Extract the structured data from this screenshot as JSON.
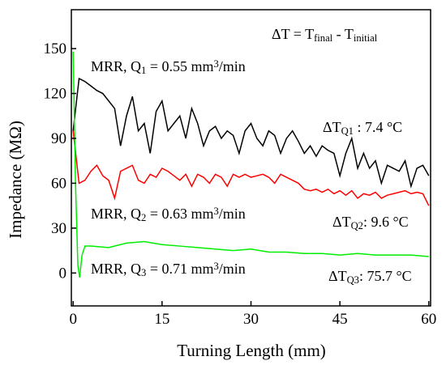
{
  "chart_data": {
    "type": "line",
    "y_label": "Impedance (MΩ)",
    "x_label": "Turning Length (mm)",
    "xlim": [
      -0.3,
      60.3
    ],
    "ylim": [
      -22,
      176
    ],
    "xticks": [
      0,
      15,
      30,
      45,
      60
    ],
    "yticks": [
      0,
      30,
      60,
      90,
      120,
      150
    ],
    "series": [
      {
        "color": "#000000",
        "x": [
          0,
          1,
          2,
          3,
          4,
          5,
          6,
          7,
          8,
          9,
          10,
          11,
          12,
          13,
          14,
          15,
          16,
          17,
          18,
          19,
          20,
          21,
          22,
          23,
          24,
          25,
          26,
          27,
          28,
          29,
          30,
          31,
          32,
          33,
          34,
          35,
          36,
          37,
          38,
          39,
          40,
          41,
          42,
          43,
          44,
          45,
          46,
          47,
          48,
          49,
          50,
          51,
          52,
          53,
          54,
          55,
          56,
          57,
          58,
          59,
          60
        ],
        "values": [
          95,
          130,
          128,
          125,
          122,
          120,
          115,
          110,
          85,
          105,
          118,
          95,
          100,
          80,
          108,
          115,
          95,
          100,
          105,
          90,
          110,
          100,
          85,
          95,
          98,
          90,
          95,
          92,
          80,
          95,
          100,
          90,
          85,
          95,
          92,
          80,
          90,
          95,
          88,
          80,
          85,
          78,
          85,
          82,
          80,
          65,
          80,
          90,
          70,
          80,
          70,
          75,
          60,
          72,
          70,
          68,
          75,
          58,
          70,
          72,
          65
        ]
      },
      {
        "color": "#ff0000",
        "x": [
          0,
          1,
          2,
          3,
          4,
          5,
          6,
          7,
          8,
          9,
          10,
          11,
          12,
          13,
          14,
          15,
          16,
          17,
          18,
          19,
          20,
          21,
          22,
          23,
          24,
          25,
          26,
          27,
          28,
          29,
          30,
          31,
          32,
          33,
          34,
          35,
          36,
          37,
          38,
          39,
          40,
          41,
          42,
          43,
          44,
          45,
          46,
          47,
          48,
          49,
          50,
          51,
          52,
          53,
          54,
          55,
          56,
          57,
          58,
          59,
          60
        ],
        "values": [
          95,
          60,
          62,
          68,
          72,
          65,
          62,
          50,
          68,
          70,
          72,
          62,
          60,
          66,
          64,
          70,
          68,
          65,
          62,
          66,
          58,
          66,
          64,
          60,
          66,
          64,
          58,
          66,
          64,
          66,
          64,
          65,
          66,
          64,
          60,
          66,
          64,
          62,
          60,
          56,
          55,
          56,
          54,
          56,
          53,
          55,
          52,
          55,
          50,
          53,
          52,
          54,
          50,
          52,
          53,
          54,
          55,
          53,
          54,
          53,
          45
        ]
      },
      {
        "color": "#00ee00",
        "x": [
          0,
          0.4,
          0.8,
          1.1,
          1.5,
          2,
          3,
          6,
          9,
          12,
          15,
          18,
          21,
          24,
          27,
          30,
          33,
          36,
          39,
          42,
          45,
          48,
          51,
          54,
          57,
          60
        ],
        "values": [
          148,
          60,
          5,
          -3,
          12,
          18,
          18,
          17,
          20,
          21,
          19,
          18,
          17,
          16,
          15,
          16,
          14,
          14,
          13,
          13,
          12,
          13,
          12,
          12,
          12,
          11
        ]
      }
    ],
    "annotations": [
      {
        "parts": [
          {
            "text": "ΔT = T"
          },
          {
            "text": "final",
            "sub": true
          },
          {
            "text": " - T"
          },
          {
            "text": "initial",
            "sub": true
          }
        ]
      },
      {
        "parts": [
          {
            "text": "MRR, Q"
          },
          {
            "text": "1",
            "sub": true
          },
          {
            "text": " = 0.55 mm"
          },
          {
            "text": "3",
            "sup": true
          },
          {
            "text": "/min"
          }
        ]
      },
      {
        "parts": [
          {
            "text": "MRR, Q"
          },
          {
            "text": "2",
            "sub": true
          },
          {
            "text": " = 0.63 mm"
          },
          {
            "text": "3",
            "sup": true
          },
          {
            "text": "/min"
          }
        ]
      },
      {
        "parts": [
          {
            "text": "MRR, Q"
          },
          {
            "text": "3",
            "sub": true
          },
          {
            "text": " = 0.71 mm"
          },
          {
            "text": "3",
            "sup": true
          },
          {
            "text": "/min"
          }
        ]
      },
      {
        "parts": [
          {
            "text": "ΔT"
          },
          {
            "text": "Q1",
            "sub": true
          },
          {
            "text": " : 7.4 °C"
          }
        ]
      },
      {
        "parts": [
          {
            "text": "ΔT"
          },
          {
            "text": "Q2",
            "sub": true
          },
          {
            "text": ": 9.6 °C"
          }
        ]
      },
      {
        "parts": [
          {
            "text": "ΔT"
          },
          {
            "text": "Q3",
            "sub": true
          },
          {
            "text": ": 75.7 °C"
          }
        ]
      }
    ]
  }
}
